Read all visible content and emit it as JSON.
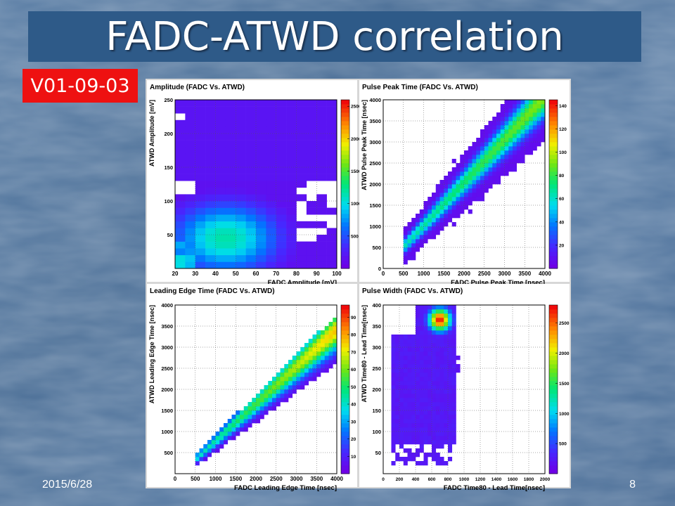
{
  "slide": {
    "title": "FADC-ATWD correlation",
    "version": "V01-09-03",
    "date": "2015/6/28",
    "page_number": "8",
    "colors": {
      "title_bar": "#2e5a88",
      "version_badge": "#ee1111",
      "background": "#55789f"
    }
  },
  "chart_data": [
    {
      "type": "heatmap",
      "title": "Amplitude (FADC Vs. ATWD)",
      "xlabel": "FADC Amplitude [mV]",
      "ylabel": "ATWD Amplitude [mV]",
      "xlim": [
        20,
        100
      ],
      "ylim": [
        0,
        250
      ],
      "x_ticks": [
        "20",
        "30",
        "40",
        "50",
        "60",
        "70",
        "80",
        "90",
        "100"
      ],
      "y_ticks": [
        "50",
        "100",
        "150",
        "200",
        "250"
      ],
      "z_max": 2600,
      "z_ticks": [
        "500",
        "1000",
        "1500",
        "2000",
        "2500"
      ],
      "features": {
        "saturation_band_y": 130,
        "blob_center": [
          48,
          50
        ]
      },
      "grid": true
    },
    {
      "type": "heatmap",
      "title": "Pulse Peak Time (FADC Vs. ATWD)",
      "xlabel": "FADC Pulse Peak Time [nsec]",
      "ylabel": "ATWD Pulse Peak Time [nsec]",
      "xlim": [
        0,
        4000
      ],
      "ylim": [
        0,
        4000
      ],
      "x_ticks": [
        "0",
        "500",
        "1000",
        "1500",
        "2000",
        "2500",
        "3000",
        "3500",
        "4000"
      ],
      "y_ticks": [
        "0",
        "500",
        "1000",
        "1500",
        "2000",
        "2500",
        "3000",
        "3500",
        "4000"
      ],
      "z_max": 145,
      "z_ticks": [
        "20",
        "40",
        "60",
        "80",
        "100",
        "120",
        "140"
      ],
      "features": {
        "diagonal_from": 550,
        "diagonal_to": 4000
      },
      "grid": true
    },
    {
      "type": "heatmap",
      "title": "Leading Edge Time (FADC Vs. ATWD)",
      "xlabel": "FADC Leading Edge Time [nsec]",
      "ylabel": "ATWD Leading Edge Time [nsec]",
      "xlim": [
        0,
        4000
      ],
      "ylim": [
        0,
        4000
      ],
      "x_ticks": [
        "0",
        "500",
        "1000",
        "1500",
        "2000",
        "2500",
        "3000",
        "3500",
        "4000"
      ],
      "y_ticks": [
        "500",
        "1000",
        "1500",
        "2000",
        "2500",
        "3000",
        "3500",
        "4000"
      ],
      "z_max": 97,
      "z_ticks": [
        "10",
        "20",
        "30",
        "40",
        "50",
        "60",
        "70",
        "80",
        "90"
      ],
      "features": {
        "diagonal_from": 550,
        "diagonal_to": 4000
      },
      "grid": true
    },
    {
      "type": "heatmap",
      "title": "Pulse Width (FADC Vs. ATWD)",
      "xlabel": "FADC Time80 - Lead Time[nsec]",
      "ylabel": "ATWD Time80 - Lead Time[nsec]",
      "xlim": [
        0,
        2000
      ],
      "ylim": [
        0,
        400
      ],
      "x_ticks": [
        "0",
        "200",
        "400",
        "600",
        "800",
        "1000",
        "1200",
        "1400",
        "1600",
        "1800",
        "2000"
      ],
      "y_ticks": [
        "50",
        "100",
        "150",
        "200",
        "250",
        "300",
        "350",
        "400"
      ],
      "z_max": 2800,
      "z_ticks": [
        "500",
        "1000",
        "1500",
        "2000",
        "2500"
      ],
      "features": {
        "band_x": [
          100,
          880
        ],
        "hotspot": [
          700,
          365
        ]
      },
      "grid": true
    }
  ]
}
